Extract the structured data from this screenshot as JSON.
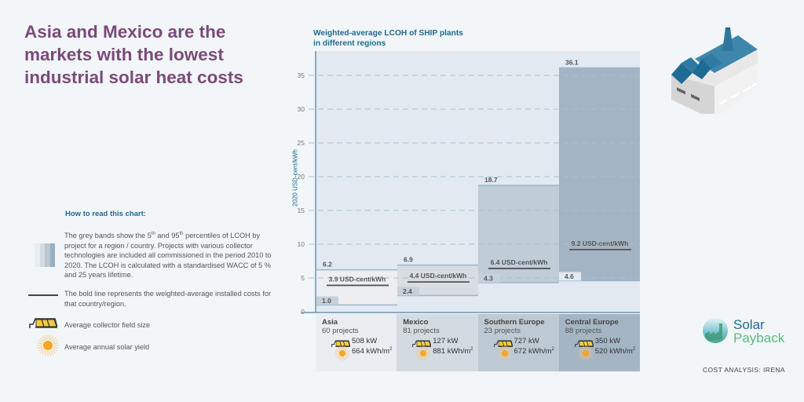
{
  "headline": "Asia and Mexico are the markets with the lowest industrial solar heat costs",
  "legend": {
    "title": "How to read this chart:",
    "bands_text_parts": [
      "The grey bands show the 5",
      "th",
      " and 95",
      "th",
      " percentiles of LCOH by project for a region / country. Projects with various collector technologies are included all commissioned in the period 2010 to 2020. The LCOH is calculated with a standardised WACC of 5 % and 25 years lifetime."
    ],
    "bold_line_text": "The bold line represents the weighted-average installed costs for that country/region.",
    "collector_text": "Average collector field size",
    "sun_text": "Average annual solar yield",
    "swatch_colors": [
      "#e9edf1",
      "#d3dbe2",
      "#b9c7d3",
      "#97b0c3"
    ]
  },
  "regions": [
    {
      "name": "Asia",
      "projects": "60 projects",
      "kw": "508 kW",
      "yield": "664 kWh/m",
      "yield_sup": "2"
    },
    {
      "name": "Mexico",
      "projects": "81 projects",
      "kw": "127 kW",
      "yield": "881 kWh/m",
      "yield_sup": "2"
    },
    {
      "name": "Southern Europe",
      "projects": "23 projects",
      "kw": "727 kW",
      "yield": "672 kWh/m",
      "yield_sup": "2"
    },
    {
      "name": "Central Europe",
      "projects": "88 projects",
      "kw": "350 kW",
      "yield": "520 kWh/m",
      "yield_sup": "2"
    }
  ],
  "chart_data": {
    "type": "bar",
    "title": "Weighted-average LCOH of SHIP plants in different regions",
    "xlabel": "",
    "ylabel": "2020 USD-cent/kWh",
    "ylim": [
      0,
      37.5
    ],
    "yticks": [
      0,
      5,
      10,
      15,
      20,
      25,
      30,
      35
    ],
    "grid": true,
    "categories": [
      "Asia",
      "Mexico",
      "Southern Europe",
      "Central Europe"
    ],
    "series": [
      {
        "name": "5th percentile",
        "values": [
          1.0,
          2.4,
          4.3,
          4.6
        ]
      },
      {
        "name": "95th percentile",
        "values": [
          6.2,
          6.9,
          18.7,
          36.1
        ]
      },
      {
        "name": "Weighted average",
        "values": [
          3.9,
          4.4,
          6.4,
          9.2
        ]
      }
    ],
    "low_labels": [
      "1.0",
      "2.4",
      "4.3",
      "4.6"
    ],
    "high_labels": [
      "6.2",
      "6.9",
      "18.7",
      "36.1"
    ],
    "avg_labels": [
      "3.9 USD-cent/kWh",
      "4.4 USD-cent/kWh",
      "6.4 USD-cent/kWh",
      "9.2 USD-cent/kWh"
    ],
    "band_colors": [
      "#eceef2",
      "#d7dde3",
      "#c0ccd6",
      "#a3b5c4"
    ],
    "panel_colors": [
      "#eaedf1",
      "#d3dbe2",
      "#bdc9d3",
      "#a4b5c4"
    ]
  },
  "branding": {
    "logo_line1": "Solar",
    "logo_line2": "Payback",
    "credit": "COST ANALYSIS: IRENA"
  },
  "colors": {
    "headline": "#7b4a79",
    "accent_blue": "#1f6a8e",
    "logo_green": "#5db97f"
  }
}
